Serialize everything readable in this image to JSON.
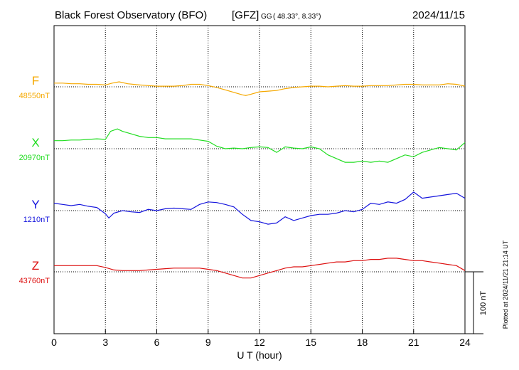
{
  "header": {
    "title": "Black Forest Observatory (BFO)",
    "institute": "[GFZ]",
    "coord_prefix": "GG",
    "coords": "( 48.33°,   8.33°)",
    "date": "2024/11/15"
  },
  "plotted_note": "Plotted at 2024/11/21 21:14 UT",
  "chart_data": {
    "type": "line",
    "xlabel": "U T (hour)",
    "xlim": [
      0,
      24
    ],
    "xticks": [
      0,
      3,
      6,
      9,
      12,
      15,
      18,
      21,
      24
    ],
    "scale_bar": {
      "label": "100 nT",
      "value_nT": 100
    },
    "series": [
      {
        "name": "F",
        "baseline_label": "48550nT",
        "baseline_nT": 48550,
        "color": "#f5a800",
        "x": [
          0,
          0.5,
          1,
          1.5,
          2,
          2.5,
          3,
          3.4,
          3.8,
          4.3,
          5,
          5.5,
          6,
          6.5,
          7,
          7.5,
          8,
          8.5,
          9,
          9.5,
          10,
          10.5,
          11,
          11.2,
          11.5,
          12,
          12.5,
          13,
          13.5,
          14,
          14.5,
          15,
          15.5,
          16,
          16.5,
          17,
          17.5,
          18,
          18.5,
          19,
          19.5,
          20,
          20.5,
          21,
          21.5,
          22,
          22.5,
          23,
          23.5,
          24
        ],
        "y": [
          6,
          6,
          5,
          5,
          4,
          4,
          3,
          6,
          8,
          5,
          3,
          2,
          1,
          1,
          1,
          2,
          4,
          4,
          2,
          -1,
          -5,
          -9,
          -13,
          -14,
          -12,
          -8,
          -7,
          -6,
          -3,
          -1,
          0,
          1,
          1,
          0,
          1,
          2,
          1,
          1,
          2,
          2,
          2,
          3,
          4,
          4,
          3,
          3,
          3,
          5,
          4,
          1
        ]
      },
      {
        "name": "X",
        "baseline_label": "20970nT",
        "baseline_nT": 20970,
        "color": "#22dd22",
        "x": [
          0,
          0.5,
          1,
          1.5,
          2,
          2.5,
          3,
          3.3,
          3.7,
          4,
          4.5,
          5,
          5.5,
          6,
          6.5,
          7,
          7.5,
          8,
          8.5,
          9,
          9.5,
          10,
          10.5,
          11,
          11.5,
          12,
          12.5,
          13,
          13.5,
          14,
          14.5,
          15,
          15.5,
          16,
          16.5,
          17,
          17.5,
          18,
          18.5,
          19,
          19.5,
          20,
          20.5,
          21,
          21.5,
          22,
          22.5,
          23,
          23.5,
          24
        ],
        "y": [
          13,
          13,
          14,
          14,
          15,
          16,
          15,
          28,
          32,
          28,
          24,
          20,
          18,
          18,
          16,
          16,
          16,
          16,
          14,
          12,
          4,
          0,
          1,
          0,
          2,
          3,
          2,
          -6,
          3,
          1,
          0,
          3,
          0,
          -10,
          -16,
          -22,
          -22,
          -20,
          -22,
          -20,
          -22,
          -16,
          -10,
          -13,
          -6,
          -2,
          2,
          0,
          -2,
          10
        ]
      },
      {
        "name": "Y",
        "baseline_label": "1210nT",
        "baseline_nT": 1210,
        "color": "#1515dd",
        "x": [
          0,
          0.5,
          1,
          1.5,
          2,
          2.5,
          3,
          3.2,
          3.5,
          4,
          4.5,
          5,
          5.5,
          6,
          6.5,
          7,
          7.5,
          8,
          8.5,
          9,
          9.5,
          10,
          10.5,
          11,
          11.5,
          12,
          12.5,
          13,
          13.5,
          14,
          14.5,
          15,
          15.5,
          16,
          16.5,
          17,
          17.5,
          18,
          18.5,
          19,
          19.5,
          20,
          20.5,
          21,
          21.5,
          22,
          22.5,
          23,
          23.5,
          24
        ],
        "y": [
          12,
          10,
          8,
          10,
          7,
          5,
          -5,
          -12,
          -4,
          0,
          -2,
          -3,
          2,
          0,
          3,
          4,
          3,
          2,
          10,
          14,
          13,
          10,
          6,
          -6,
          -16,
          -18,
          -22,
          -20,
          -10,
          -16,
          -12,
          -8,
          -6,
          -6,
          -4,
          0,
          -2,
          2,
          12,
          10,
          14,
          12,
          18,
          30,
          20,
          22,
          24,
          26,
          28,
          20
        ]
      },
      {
        "name": "Z",
        "baseline_label": "43760nT",
        "baseline_nT": 43760,
        "color": "#dd1111",
        "x": [
          0,
          0.5,
          1,
          1.5,
          2,
          2.5,
          3,
          3.5,
          4,
          4.5,
          5,
          5.5,
          6,
          6.5,
          7,
          7.5,
          8,
          8.5,
          9,
          9.5,
          10,
          10.5,
          11,
          11.5,
          12,
          12.5,
          13,
          13.5,
          14,
          14.5,
          15,
          15.5,
          16,
          16.5,
          17,
          17.5,
          18,
          18.5,
          19,
          19.5,
          20,
          20.5,
          21,
          21.5,
          22,
          22.5,
          23,
          23.5,
          24
        ],
        "y": [
          10,
          10,
          10,
          10,
          10,
          10,
          7,
          3,
          2,
          2,
          2,
          3,
          4,
          5,
          6,
          6,
          6,
          6,
          4,
          2,
          -2,
          -6,
          -10,
          -10,
          -6,
          -2,
          2,
          6,
          8,
          8,
          10,
          12,
          14,
          16,
          16,
          18,
          18,
          20,
          20,
          22,
          22,
          20,
          18,
          18,
          16,
          14,
          12,
          10,
          2
        ]
      }
    ]
  }
}
